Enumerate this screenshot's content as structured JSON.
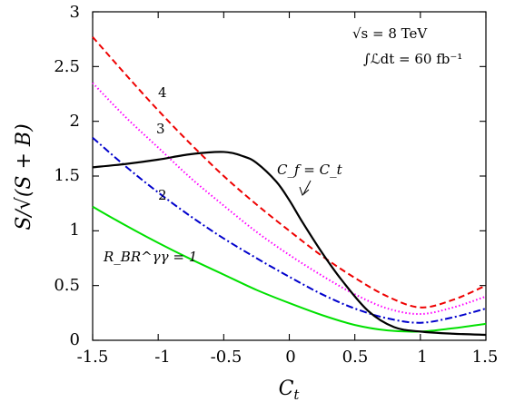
{
  "chart_data": {
    "type": "line",
    "xlabel": "C_t",
    "ylabel": "S/√(S+B)",
    "xlim": [
      -1.5,
      1.5
    ],
    "ylim": [
      0,
      3
    ],
    "xticks": [
      -1.5,
      -1,
      -0.5,
      0,
      0.5,
      1,
      1.5
    ],
    "yticks": [
      0,
      0.5,
      1,
      1.5,
      2,
      2.5,
      3
    ],
    "xtick_labels": [
      "-1.5",
      "-1",
      "-0.5",
      "0",
      "0.5",
      "1",
      "1.5"
    ],
    "ytick_labels": [
      "0",
      "0.5",
      "1",
      "1.5",
      "2",
      "2.5",
      "3"
    ],
    "grid": false,
    "annotations": {
      "energy": "√s = 8 TeV",
      "lumi": "∫ℒdt = 60 fb⁻¹",
      "cf_label": "C_f = C_t",
      "r_label": "R_BR^γγ = 1"
    },
    "series": [
      {
        "label": "1",
        "color": "#00e000",
        "dash": "solid",
        "x": [
          -1.5,
          -1.25,
          -1.0,
          -0.75,
          -0.5,
          -0.25,
          0.0,
          0.25,
          0.5,
          0.75,
          1.0,
          1.25,
          1.5
        ],
        "y": [
          1.22,
          1.05,
          0.89,
          0.74,
          0.6,
          0.46,
          0.34,
          0.23,
          0.14,
          0.09,
          0.08,
          0.11,
          0.15
        ]
      },
      {
        "label": "2",
        "color": "#0000cc",
        "dash": "dashdot",
        "x": [
          -1.5,
          -1.25,
          -1.0,
          -0.75,
          -0.5,
          -0.25,
          0.0,
          0.25,
          0.5,
          0.75,
          1.0,
          1.25,
          1.5
        ],
        "y": [
          1.85,
          1.59,
          1.35,
          1.13,
          0.93,
          0.75,
          0.58,
          0.42,
          0.29,
          0.2,
          0.16,
          0.21,
          0.29
        ]
      },
      {
        "label": "3",
        "color": "#ff00ff",
        "dash": "dotted",
        "x": [
          -1.5,
          -1.25,
          -1.0,
          -0.75,
          -0.5,
          -0.25,
          0.0,
          0.25,
          0.5,
          0.75,
          1.0,
          1.25,
          1.5
        ],
        "y": [
          2.35,
          2.04,
          1.76,
          1.48,
          1.23,
          0.99,
          0.78,
          0.59,
          0.42,
          0.29,
          0.24,
          0.3,
          0.4
        ]
      },
      {
        "label": "4",
        "color": "#ee0000",
        "dash": "dashed",
        "x": [
          -1.5,
          -1.25,
          -1.0,
          -0.75,
          -0.5,
          -0.25,
          0.0,
          0.25,
          0.5,
          0.75,
          1.0,
          1.25,
          1.5
        ],
        "y": [
          2.77,
          2.43,
          2.1,
          1.79,
          1.5,
          1.24,
          1.0,
          0.77,
          0.57,
          0.4,
          0.3,
          0.37,
          0.5
        ]
      },
      {
        "label": "C_f = C_t",
        "color": "#000000",
        "dash": "solid",
        "x": [
          -1.5,
          -1.25,
          -1.0,
          -0.75,
          -0.5,
          -0.35,
          -0.25,
          -0.1,
          0.0,
          0.1,
          0.25,
          0.4,
          0.6,
          0.8,
          1.0,
          1.25,
          1.5
        ],
        "y": [
          1.58,
          1.61,
          1.65,
          1.7,
          1.72,
          1.68,
          1.62,
          1.45,
          1.28,
          1.08,
          0.8,
          0.55,
          0.27,
          0.12,
          0.08,
          0.06,
          0.05
        ]
      }
    ]
  }
}
